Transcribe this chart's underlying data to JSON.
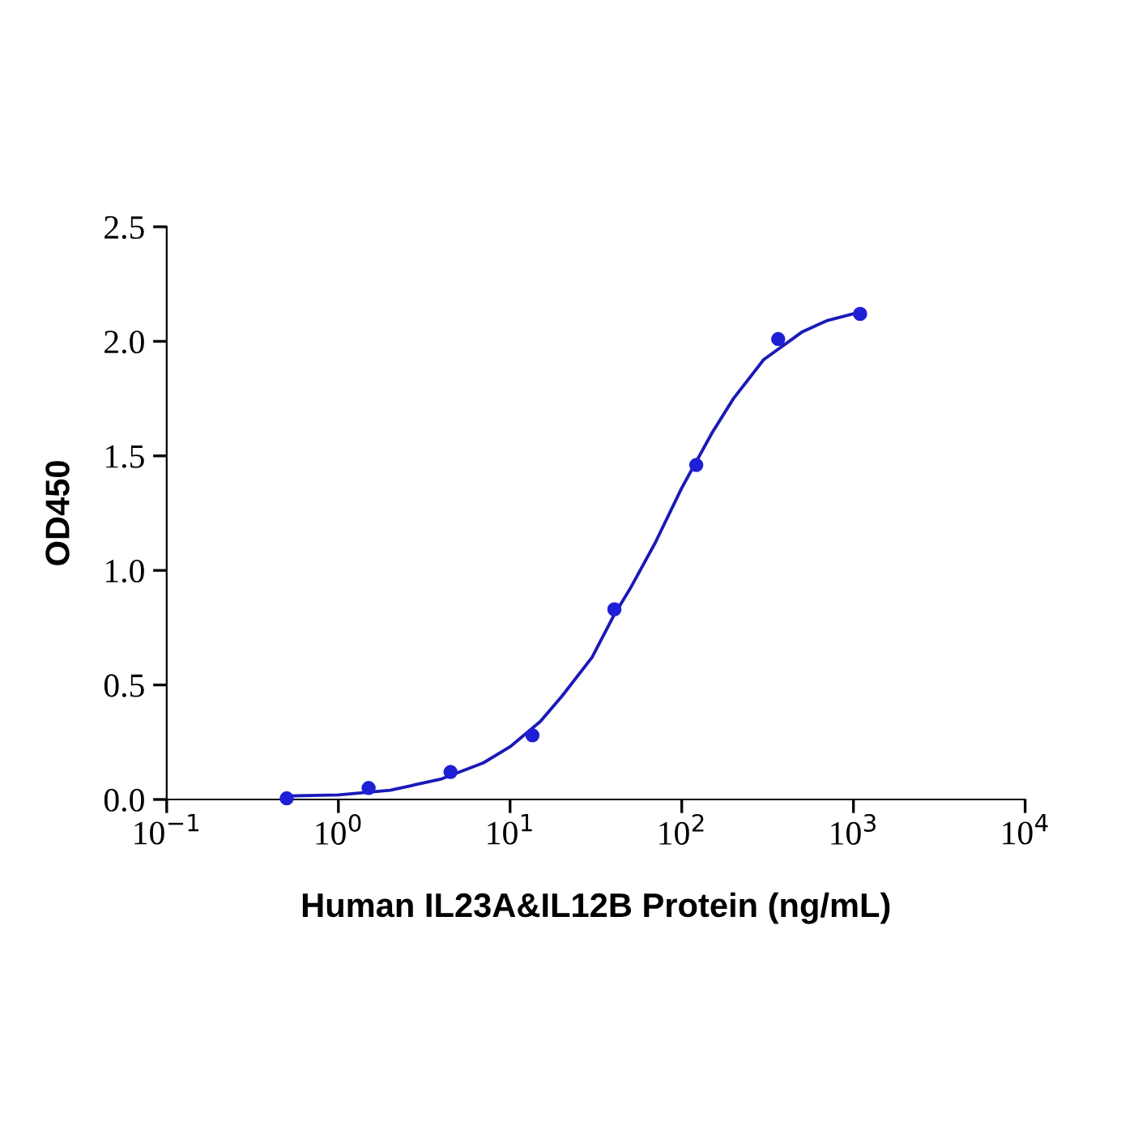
{
  "chart_data": {
    "type": "scatter",
    "xlabel": "Human IL23A&IL12B Protein (ng/mL)",
    "ylabel": "OD450",
    "log": "x",
    "grid": false,
    "series": [
      {
        "marker": "circle",
        "color": "#1f1fd6",
        "x": [
          0.5,
          1.5,
          4.5,
          13.5,
          40.5,
          121.5,
          364.5,
          1093.5
        ],
        "values": [
          0.005,
          0.05,
          0.12,
          0.28,
          0.83,
          1.46,
          2.01,
          2.12
        ]
      },
      {
        "type": "line",
        "marker": "none",
        "color": "#1a1ab8",
        "x": [
          0.5,
          1,
          2,
          4,
          7,
          10,
          15,
          20,
          30,
          40,
          50,
          70,
          100,
          150,
          200,
          300,
          500,
          700,
          1000,
          1093.5
        ],
        "values": [
          0.015,
          0.02,
          0.04,
          0.09,
          0.16,
          0.23,
          0.34,
          0.45,
          0.62,
          0.8,
          0.92,
          1.12,
          1.36,
          1.6,
          1.75,
          1.92,
          2.04,
          2.09,
          2.12,
          2.13
        ]
      }
    ],
    "xlim": [
      0.1,
      10000
    ],
    "xticks": [
      {
        "value": 0.1,
        "label": "10$^{−1}$"
      },
      {
        "value": 1,
        "label": "10$^{0}$"
      },
      {
        "value": 10,
        "label": "10$^{1}$"
      },
      {
        "value": 100,
        "label": "10$^{2}$"
      },
      {
        "value": 1000,
        "label": "10$^{3}$"
      },
      {
        "value": 10000,
        "label": "10$^{4}$"
      }
    ],
    "ylim": [
      0,
      2.5
    ],
    "yticks": [
      {
        "value": 0,
        "label": "0.0"
      },
      {
        "value": 0.5,
        "label": "0.5"
      },
      {
        "value": 1,
        "label": "1.0"
      },
      {
        "value": 1.5,
        "label": "1.5"
      },
      {
        "value": 2,
        "label": "2.0"
      },
      {
        "value": 2.5,
        "label": "2.5"
      }
    ]
  }
}
